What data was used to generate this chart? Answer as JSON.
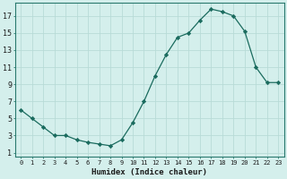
{
  "x": [
    0,
    1,
    2,
    3,
    4,
    5,
    6,
    7,
    8,
    9,
    10,
    11,
    12,
    13,
    14,
    15,
    16,
    17,
    18,
    19,
    20,
    21,
    22,
    23
  ],
  "y": [
    6,
    5,
    4,
    3,
    3,
    2.5,
    2.2,
    2,
    1.8,
    2.5,
    4.5,
    7,
    10,
    12.5,
    14.5,
    15,
    16.5,
    17.8,
    17.5,
    17,
    15.2,
    11,
    9.2,
    9.2
  ],
  "line_color": "#1a6b5e",
  "marker": "D",
  "marker_size": 2.2,
  "bg_color": "#d4efec",
  "grid_color": "#b8dbd7",
  "xlabel": "Humidex (Indice chaleur)",
  "yticks": [
    1,
    3,
    5,
    7,
    9,
    11,
    13,
    15,
    17
  ],
  "xtick_labels": [
    "0",
    "1",
    "2",
    "3",
    "4",
    "5",
    "6",
    "7",
    "8",
    "9",
    "10",
    "11",
    "12",
    "13",
    "14",
    "15",
    "16",
    "17",
    "18",
    "19",
    "20",
    "21",
    "22",
    "23"
  ],
  "ylim": [
    0.5,
    18.5
  ],
  "xlim": [
    -0.5,
    23.5
  ],
  "xlabel_fontsize": 6.5,
  "ytick_fontsize": 6.0,
  "xtick_fontsize": 5.0,
  "spine_color": "#2a7a6e",
  "tick_color": "#2a7a6e"
}
